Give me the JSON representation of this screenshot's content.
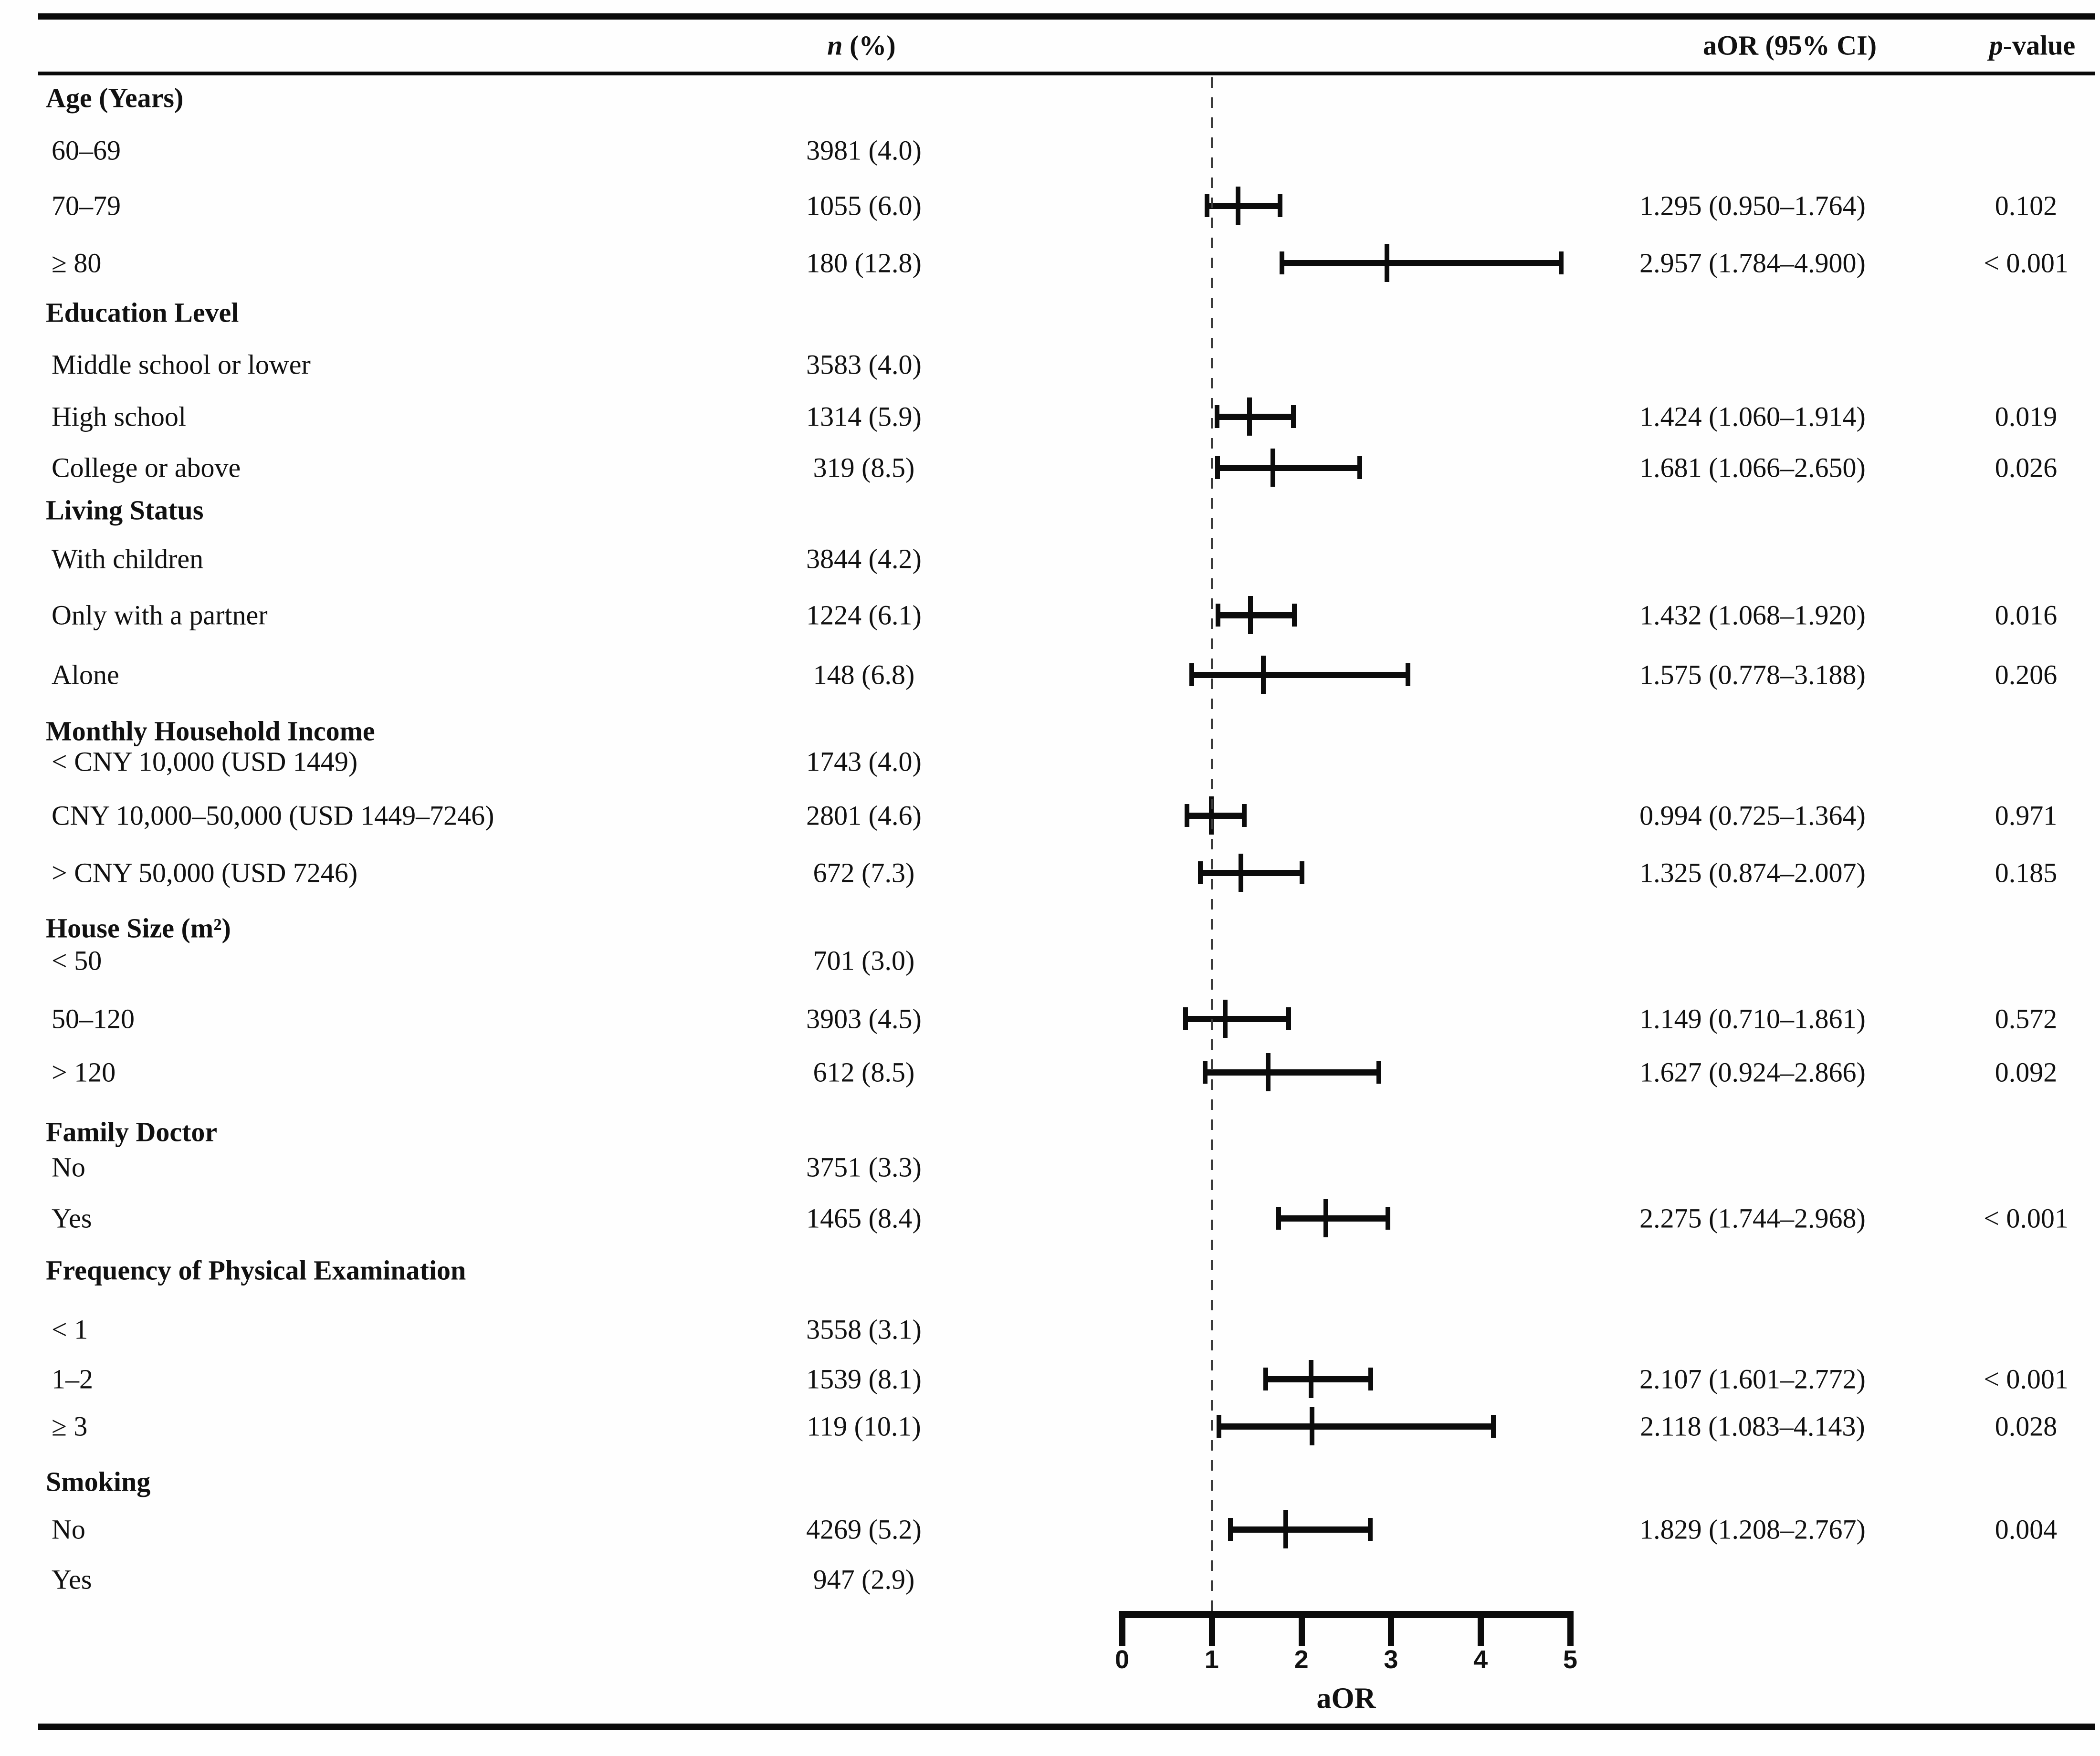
{
  "header": {
    "n_italic": "n",
    "n_rest": " (%)",
    "aor_label": "aOR (95% CI)",
    "p_italic": "p",
    "p_rest": "-value"
  },
  "axis": {
    "label": "aOR",
    "min": 0,
    "max": 5,
    "ticks": [
      "0",
      "1",
      "2",
      "3",
      "4",
      "5"
    ],
    "reference_line": 1
  },
  "colors": {
    "ink": "#0c0c0c",
    "background": "#fefefe"
  },
  "chart_data": {
    "type": "forest",
    "title": "",
    "xlabel": "aOR",
    "xlim": [
      0,
      5
    ],
    "x_ticks": [
      0,
      1,
      2,
      3,
      4,
      5
    ],
    "reference_line": 1,
    "columns": [
      "n (%)",
      "aOR (95% CI)",
      "p-value"
    ],
    "rows": [
      {
        "type": "section",
        "label": "Age (Years)"
      },
      {
        "type": "item",
        "label": "60–69",
        "n": "3981 (4.0)"
      },
      {
        "type": "item",
        "label": "70–79",
        "n": "1055 (6.0)",
        "est": 1.295,
        "lo": 0.95,
        "hi": 1.764,
        "aor": "1.295 (0.950–1.764)",
        "p": "0.102"
      },
      {
        "type": "item",
        "label": "≥ 80",
        "n": "180 (12.8)",
        "est": 2.957,
        "lo": 1.784,
        "hi": 4.9,
        "aor": "2.957 (1.784–4.900)",
        "p": "< 0.001"
      },
      {
        "type": "section",
        "label": "Education Level"
      },
      {
        "type": "item",
        "label": "Middle school or lower",
        "n": "3583 (4.0)"
      },
      {
        "type": "item",
        "label": "High school",
        "n": "1314 (5.9)",
        "est": 1.424,
        "lo": 1.06,
        "hi": 1.914,
        "aor": "1.424 (1.060–1.914)",
        "p": "0.019"
      },
      {
        "type": "item",
        "label": "College or above",
        "n": "319 (8.5)",
        "est": 1.681,
        "lo": 1.066,
        "hi": 2.65,
        "aor": "1.681 (1.066–2.650)",
        "p": "0.026"
      },
      {
        "type": "section",
        "label": "Living Status"
      },
      {
        "type": "item",
        "label": "With children",
        "n": "3844 (4.2)"
      },
      {
        "type": "item",
        "label": "Only with a partner",
        "n": "1224 (6.1)",
        "est": 1.432,
        "lo": 1.068,
        "hi": 1.92,
        "aor": "1.432 (1.068–1.920)",
        "p": "0.016"
      },
      {
        "type": "item",
        "label": "Alone",
        "n": "148 (6.8)",
        "est": 1.575,
        "lo": 0.778,
        "hi": 3.188,
        "aor": "1.575 (0.778–3.188)",
        "p": "0.206"
      },
      {
        "type": "section",
        "label": "Monthly Household Income"
      },
      {
        "type": "item",
        "label": "< CNY 10,000 (USD 1449)",
        "n": "1743 (4.0)"
      },
      {
        "type": "item",
        "label": "CNY 10,000–50,000 (USD 1449–7246)",
        "n": "2801 (4.6)",
        "est": 0.994,
        "lo": 0.725,
        "hi": 1.364,
        "aor": "0.994 (0.725–1.364)",
        "p": "0.971"
      },
      {
        "type": "item",
        "label": "> CNY 50,000 (USD 7246)",
        "n": "672 (7.3)",
        "est": 1.325,
        "lo": 0.874,
        "hi": 2.007,
        "aor": "1.325 (0.874–2.007)",
        "p": "0.185"
      },
      {
        "type": "section",
        "label": "House Size (m²)"
      },
      {
        "type": "item",
        "label": "< 50",
        "n": "701 (3.0)"
      },
      {
        "type": "item",
        "label": "50–120",
        "n": "3903 (4.5)",
        "est": 1.149,
        "lo": 0.71,
        "hi": 1.861,
        "aor": "1.149 (0.710–1.861)",
        "p": "0.572"
      },
      {
        "type": "item",
        "label": "> 120",
        "n": "612 (8.5)",
        "est": 1.627,
        "lo": 0.924,
        "hi": 2.866,
        "aor": "1.627 (0.924–2.866)",
        "p": "0.092"
      },
      {
        "type": "section",
        "label": "Family Doctor"
      },
      {
        "type": "item",
        "label": "No",
        "n": "3751 (3.3)"
      },
      {
        "type": "item",
        "label": "Yes",
        "n": "1465 (8.4)",
        "est": 2.275,
        "lo": 1.744,
        "hi": 2.968,
        "aor": "2.275 (1.744–2.968)",
        "p": "< 0.001"
      },
      {
        "type": "section",
        "label": "Frequency of Physical Examination"
      },
      {
        "type": "item",
        "label": "< 1",
        "n": "3558 (3.1)"
      },
      {
        "type": "item",
        "label": "1–2",
        "n": "1539 (8.1)",
        "est": 2.107,
        "lo": 1.601,
        "hi": 2.772,
        "aor": "2.107 (1.601–2.772)",
        "p": "< 0.001"
      },
      {
        "type": "item",
        "label": "≥ 3",
        "n": "119 (10.1)",
        "est": 2.118,
        "lo": 1.083,
        "hi": 4.143,
        "aor": "2.118 (1.083–4.143)",
        "p": "0.028"
      },
      {
        "type": "section",
        "label": "Smoking"
      },
      {
        "type": "item",
        "label": "No",
        "n": "4269 (5.2)",
        "est": 1.829,
        "lo": 1.208,
        "hi": 2.767,
        "aor": "1.829 (1.208–2.767)",
        "p": "0.004"
      },
      {
        "type": "item",
        "label": "Yes",
        "n": "947 (2.9)"
      }
    ]
  }
}
